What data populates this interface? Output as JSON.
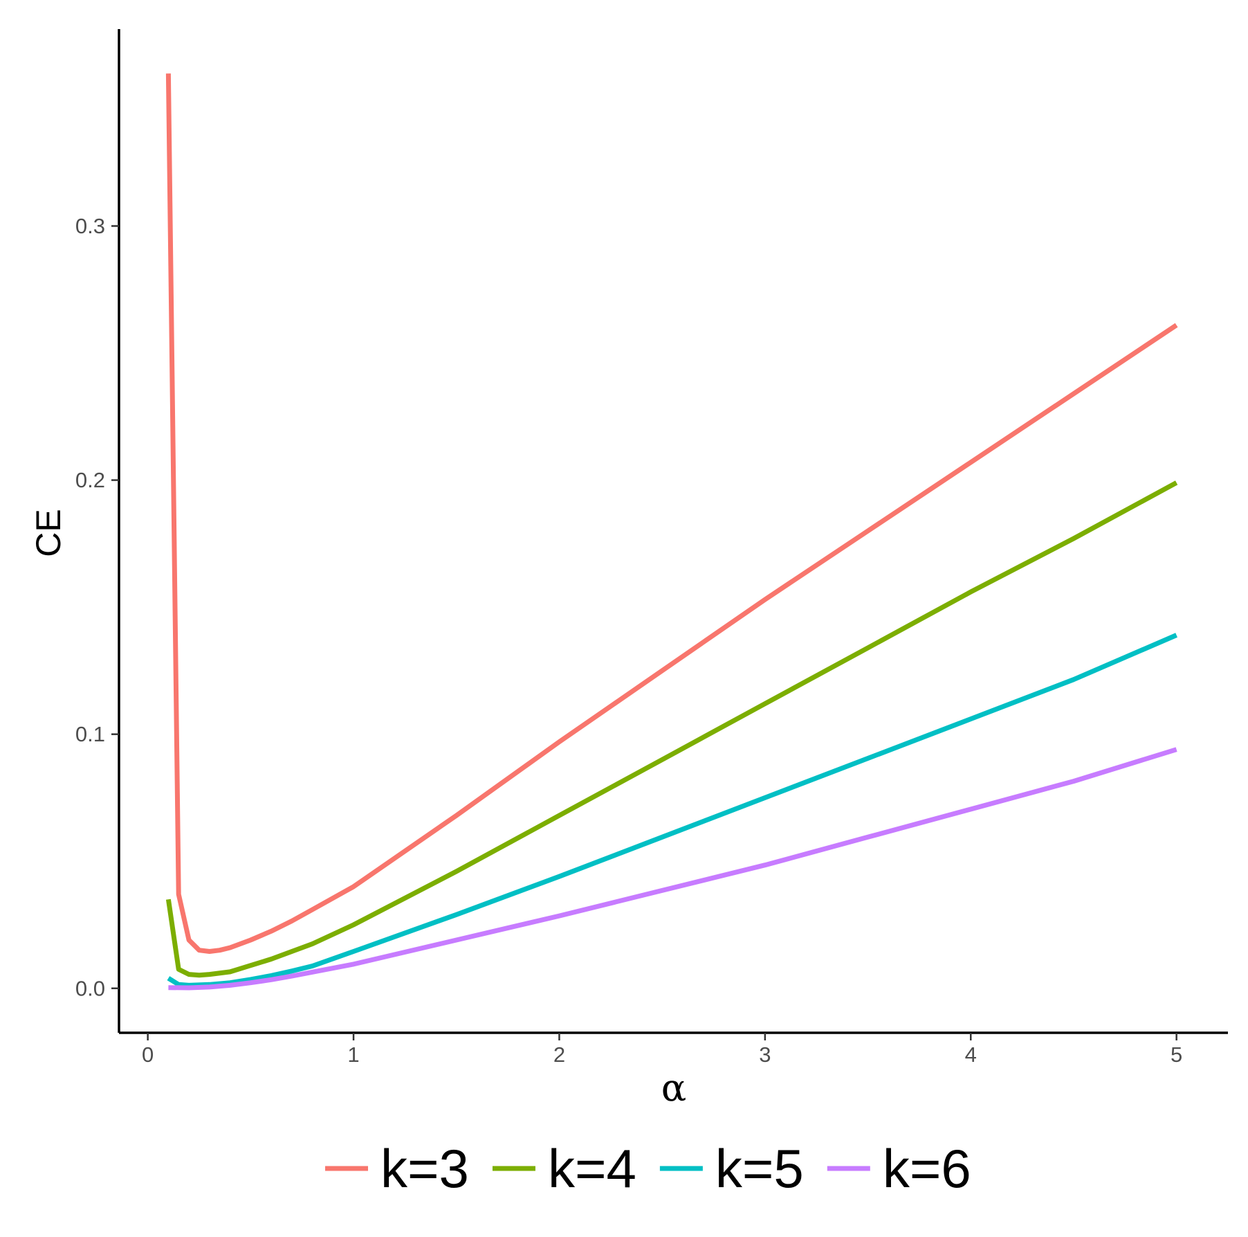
{
  "chart_data": {
    "type": "line",
    "xlabel": "α",
    "ylabel": "CE",
    "xlim": [
      -0.14,
      5.25
    ],
    "ylim": [
      -0.0175,
      0.3775
    ],
    "xticks": [
      0,
      1,
      2,
      3,
      4,
      5
    ],
    "xtick_labels": [
      "0",
      "1",
      "2",
      "3",
      "4",
      "5"
    ],
    "yticks": [
      0.0,
      0.1,
      0.2,
      0.3
    ],
    "ytick_labels": [
      "0.0",
      "0.1",
      "0.2",
      "0.3"
    ],
    "grid": false,
    "legend_position": "bottom",
    "series": [
      {
        "name": "k=3",
        "color": "#F8766D",
        "points": [
          [
            0.1,
            0.36
          ],
          [
            0.15,
            0.037
          ],
          [
            0.2,
            0.019
          ],
          [
            0.25,
            0.015
          ],
          [
            0.3,
            0.0145
          ],
          [
            0.35,
            0.015
          ],
          [
            0.4,
            0.016
          ],
          [
            0.5,
            0.019
          ],
          [
            0.6,
            0.0225
          ],
          [
            0.7,
            0.0265
          ],
          [
            0.8,
            0.031
          ],
          [
            1.0,
            0.04
          ],
          [
            1.5,
            0.068
          ],
          [
            2.0,
            0.097
          ],
          [
            2.5,
            0.125
          ],
          [
            3.0,
            0.153
          ],
          [
            3.5,
            0.18
          ],
          [
            4.0,
            0.207
          ],
          [
            4.5,
            0.234
          ],
          [
            5.0,
            0.261
          ]
        ]
      },
      {
        "name": "k=4",
        "color": "#7CAE00",
        "points": [
          [
            0.1,
            0.035
          ],
          [
            0.15,
            0.0075
          ],
          [
            0.2,
            0.0055
          ],
          [
            0.25,
            0.0052
          ],
          [
            0.3,
            0.0055
          ],
          [
            0.4,
            0.0065
          ],
          [
            0.5,
            0.009
          ],
          [
            0.6,
            0.0115
          ],
          [
            0.7,
            0.0145
          ],
          [
            0.8,
            0.0175
          ],
          [
            1.0,
            0.025
          ],
          [
            1.5,
            0.046
          ],
          [
            2.0,
            0.068
          ],
          [
            2.5,
            0.09
          ],
          [
            3.0,
            0.112
          ],
          [
            3.5,
            0.134
          ],
          [
            4.0,
            0.156
          ],
          [
            4.5,
            0.177
          ],
          [
            5.0,
            0.199
          ]
        ]
      },
      {
        "name": "k=5",
        "color": "#00BFC4",
        "points": [
          [
            0.1,
            0.004
          ],
          [
            0.15,
            0.0015
          ],
          [
            0.2,
            0.0012
          ],
          [
            0.3,
            0.0015
          ],
          [
            0.4,
            0.0022
          ],
          [
            0.5,
            0.0035
          ],
          [
            0.6,
            0.005
          ],
          [
            0.7,
            0.0068
          ],
          [
            0.8,
            0.0088
          ],
          [
            1.0,
            0.0145
          ],
          [
            1.5,
            0.029
          ],
          [
            2.0,
            0.044
          ],
          [
            2.5,
            0.0595
          ],
          [
            3.0,
            0.075
          ],
          [
            3.5,
            0.0905
          ],
          [
            4.0,
            0.106
          ],
          [
            4.5,
            0.1215
          ],
          [
            5.0,
            0.139
          ]
        ]
      },
      {
        "name": "k=6",
        "color": "#C77CFF",
        "points": [
          [
            0.1,
            0.0003
          ],
          [
            0.2,
            0.0002
          ],
          [
            0.3,
            0.0005
          ],
          [
            0.4,
            0.0012
          ],
          [
            0.5,
            0.0022
          ],
          [
            0.6,
            0.0034
          ],
          [
            0.7,
            0.0048
          ],
          [
            0.8,
            0.0064
          ],
          [
            1.0,
            0.0095
          ],
          [
            1.5,
            0.019
          ],
          [
            2.0,
            0.0285
          ],
          [
            2.5,
            0.0385
          ],
          [
            3.0,
            0.0485
          ],
          [
            3.5,
            0.0595
          ],
          [
            4.0,
            0.0705
          ],
          [
            4.5,
            0.0815
          ],
          [
            5.0,
            0.094
          ]
        ]
      }
    ]
  }
}
